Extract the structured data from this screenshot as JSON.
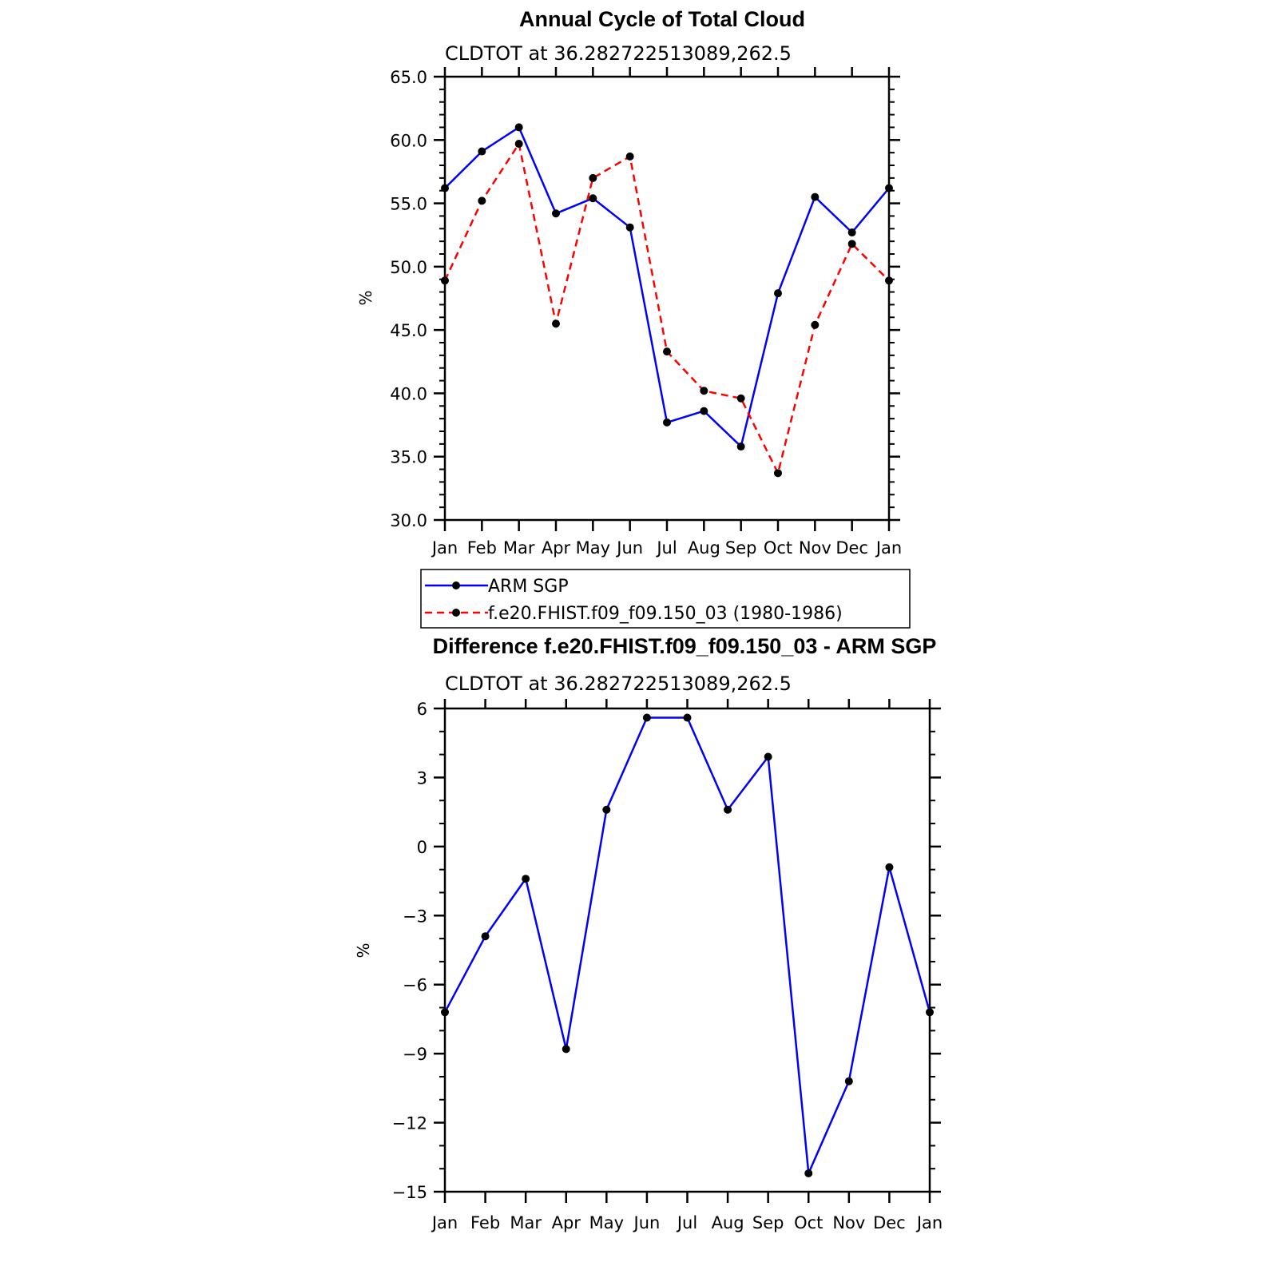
{
  "chart_data": [
    {
      "type": "line",
      "title": "Annual Cycle of Total Cloud",
      "subtitle": "CLDTOT at 36.282722513089,262.5",
      "ylabel": "%",
      "ylim": [
        30,
        65
      ],
      "yticks": [
        "30.0",
        "35.0",
        "40.0",
        "45.0",
        "50.0",
        "55.0",
        "60.0",
        "65.0"
      ],
      "categories": [
        "Jan",
        "Feb",
        "Mar",
        "Apr",
        "May",
        "Jun",
        "Jul",
        "Aug",
        "Sep",
        "Oct",
        "Nov",
        "Dec",
        "Jan"
      ],
      "series": [
        {
          "name": "ARM SGP",
          "color": "#0000ff",
          "dash": "solid",
          "values": [
            56.2,
            59.1,
            61.0,
            54.2,
            55.4,
            53.1,
            37.7,
            38.6,
            35.8,
            47.9,
            55.5,
            52.7,
            56.2
          ]
        },
        {
          "name": "f.e20.FHIST.f09_f09.150_03 (1980-1986)",
          "color": "#ff0000",
          "dash": "dashed",
          "values": [
            48.9,
            55.2,
            59.7,
            45.5,
            57.0,
            58.7,
            43.3,
            40.2,
            39.6,
            33.7,
            45.4,
            51.8,
            48.9
          ]
        }
      ],
      "legend": "below"
    },
    {
      "type": "line",
      "title": "Difference f.e20.FHIST.f09_f09.150_03 - ARM SGP",
      "subtitle": "CLDTOT at 36.282722513089,262.5",
      "ylabel": "%",
      "ylim": [
        -15,
        6
      ],
      "yticks": [
        "−15",
        "−12",
        "−9",
        "−6",
        "−3",
        "0",
        "3",
        "6"
      ],
      "categories": [
        "Jan",
        "Feb",
        "Mar",
        "Apr",
        "May",
        "Jun",
        "Jul",
        "Aug",
        "Sep",
        "Oct",
        "Nov",
        "Dec",
        "Jan"
      ],
      "series": [
        {
          "color": "#0000ff",
          "dash": "solid",
          "values": [
            -7.2,
            -3.9,
            -1.4,
            -8.8,
            1.6,
            5.6,
            5.6,
            1.6,
            3.9,
            -14.2,
            -10.2,
            -0.9,
            -7.2
          ]
        }
      ]
    }
  ]
}
